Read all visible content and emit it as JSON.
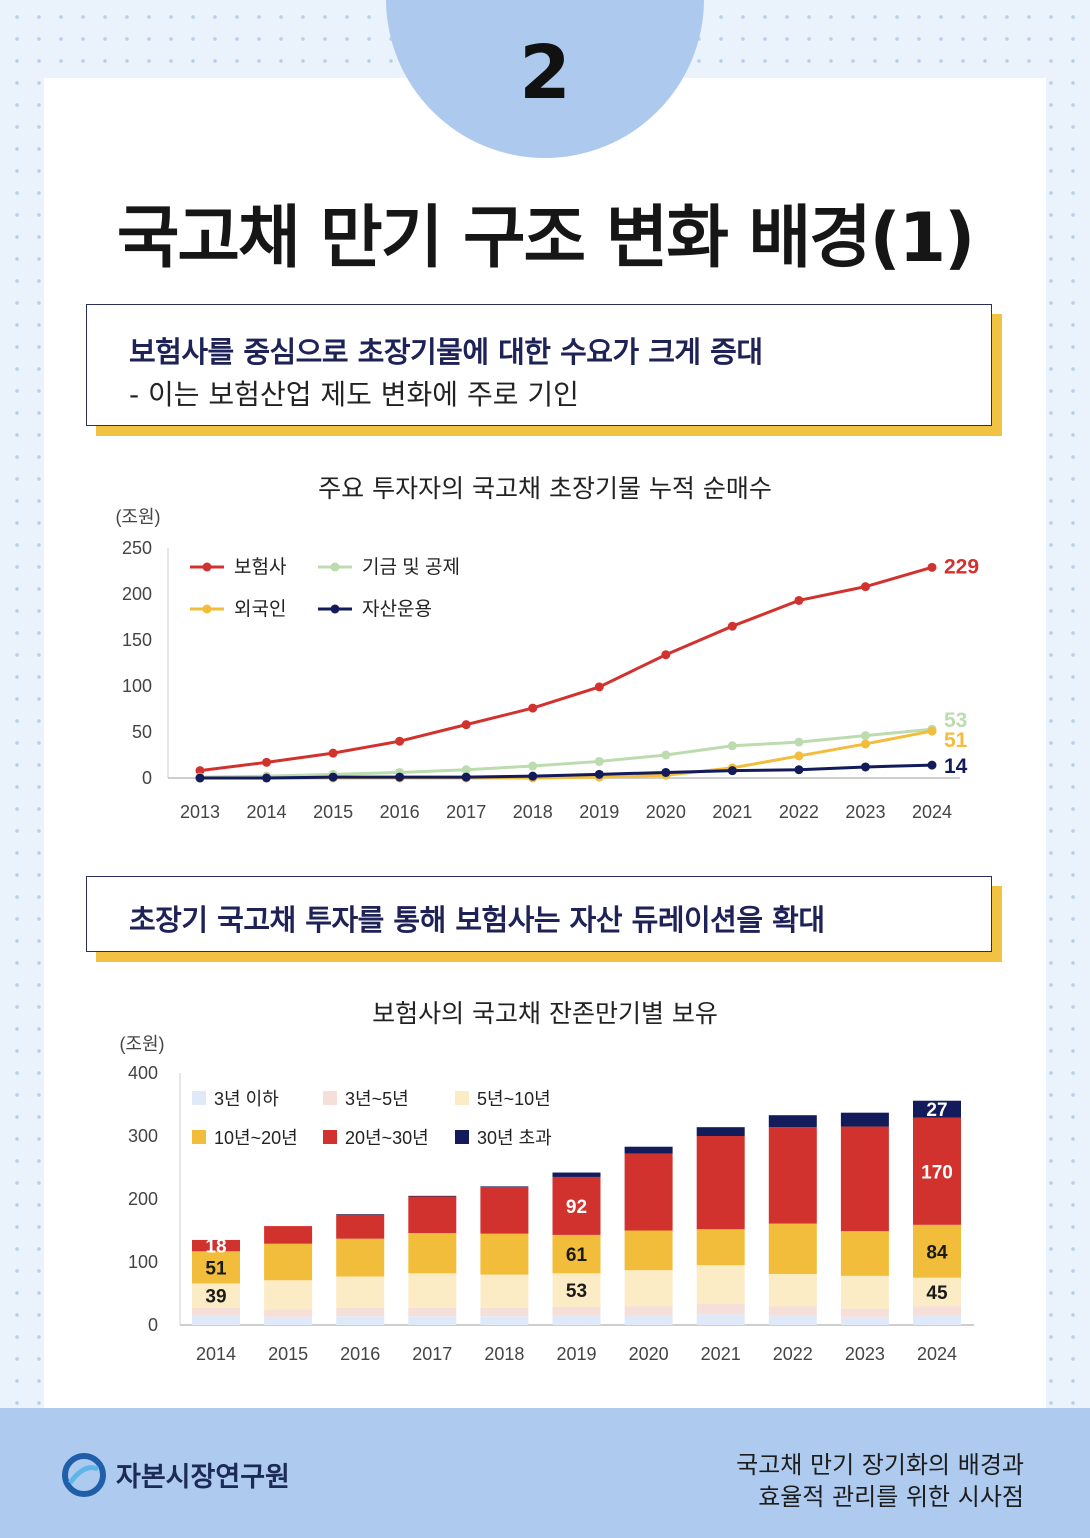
{
  "page_number": "2",
  "title": "국고채 만기 구조 변화 배경(1)",
  "box1": {
    "heading": "보험사를 중심으로 초장기물에 대한 수요가 크게 증대",
    "sub": "- 이는 보험산업  제도 변화에 주로 기인"
  },
  "box2": {
    "heading": "초장기 국고채 투자를 통해 보험사는 자산 듀레이션을 확대"
  },
  "footer": {
    "org": "자본시장연구원",
    "doc_line1": "국고채 만기 장기화의 배경과",
    "doc_line2": "효율적 관리를 위한 시사점"
  },
  "chart_data": [
    {
      "type": "line",
      "title": "주요 투자자의 국고채 초장기물 누적 순매수",
      "unit": "(조원)",
      "x": [
        "2013",
        "2014",
        "2015",
        "2016",
        "2017",
        "2018",
        "2019",
        "2020",
        "2021",
        "2022",
        "2023",
        "2024"
      ],
      "ylim": [
        0,
        250
      ],
      "yticks": [
        0,
        50,
        100,
        150,
        200,
        250
      ],
      "legend_position": "top-left",
      "series": [
        {
          "name": "보험사",
          "color": "#d2322d",
          "values": [
            8,
            17,
            27,
            40,
            58,
            76,
            99,
            134,
            165,
            193,
            208,
            229
          ],
          "end_label": "229"
        },
        {
          "name": "기금 및 공제",
          "color": "#bcdcb0",
          "values": [
            1,
            2,
            4,
            6,
            9,
            13,
            18,
            25,
            35,
            39,
            46,
            53
          ],
          "end_label": "53"
        },
        {
          "name": "외국인",
          "color": "#f3bd3c",
          "values": [
            0,
            0,
            0,
            0,
            0,
            0,
            1,
            3,
            11,
            24,
            37,
            51
          ],
          "end_label": "51"
        },
        {
          "name": "자산운용",
          "color": "#131b5a",
          "values": [
            0,
            0,
            1,
            1,
            1,
            2,
            4,
            6,
            8,
            9,
            12,
            14
          ],
          "end_label": "14"
        }
      ]
    },
    {
      "type": "bar",
      "stacked": true,
      "title": "보험사의 국고채 잔존만기별 보유",
      "unit": "(조원)",
      "categories": [
        "2014",
        "2015",
        "2016",
        "2017",
        "2018",
        "2019",
        "2020",
        "2021",
        "2022",
        "2023",
        "2024"
      ],
      "ylim": [
        0,
        400
      ],
      "yticks": [
        0,
        100,
        200,
        300,
        400
      ],
      "legend_position": "top-left",
      "series": [
        {
          "name": "3년 이하",
          "color": "#dfe9f7",
          "values": [
            15,
            13,
            14,
            14,
            14,
            15,
            15,
            17,
            15,
            13,
            15
          ]
        },
        {
          "name": "3년~5년",
          "color": "#f7dfd9",
          "values": [
            12,
            12,
            13,
            13,
            13,
            14,
            15,
            17,
            15,
            13,
            15
          ]
        },
        {
          "name": "5년~10년",
          "color": "#fbecc5",
          "values": [
            39,
            46,
            50,
            55,
            53,
            53,
            57,
            61,
            51,
            52,
            45
          ]
        },
        {
          "name": "10년~20년",
          "color": "#f3bd3c",
          "values": [
            51,
            58,
            60,
            64,
            65,
            61,
            63,
            57,
            80,
            71,
            84
          ]
        },
        {
          "name": "20년~30년",
          "color": "#d2322d",
          "values": [
            18,
            28,
            38,
            58,
            74,
            92,
            122,
            148,
            153,
            166,
            170
          ]
        },
        {
          "name": "30년 초과",
          "color": "#131b5a",
          "values": [
            0,
            0,
            1,
            1,
            1,
            7,
            11,
            14,
            19,
            22,
            27
          ]
        }
      ],
      "data_labels": [
        {
          "category": "2014",
          "series": "5년~10년",
          "text": "39",
          "color": "#1a1a1a"
        },
        {
          "category": "2014",
          "series": "10년~20년",
          "text": "51",
          "color": "#1a1a1a"
        },
        {
          "category": "2014",
          "series": "20년~30년",
          "text": "18",
          "color": "#ffffff"
        },
        {
          "category": "2019",
          "series": "5년~10년",
          "text": "53",
          "color": "#1a1a1a"
        },
        {
          "category": "2019",
          "series": "10년~20년",
          "text": "61",
          "color": "#1a1a1a"
        },
        {
          "category": "2019",
          "series": "20년~30년",
          "text": "92",
          "color": "#ffffff"
        },
        {
          "category": "2024",
          "series": "5년~10년",
          "text": "45",
          "color": "#1a1a1a"
        },
        {
          "category": "2024",
          "series": "10년~20년",
          "text": "84",
          "color": "#1a1a1a"
        },
        {
          "category": "2024",
          "series": "20년~30년",
          "text": "170",
          "color": "#ffffff"
        },
        {
          "category": "2024",
          "series": "30년 초과",
          "text": "27",
          "color": "#ffffff"
        }
      ]
    }
  ]
}
